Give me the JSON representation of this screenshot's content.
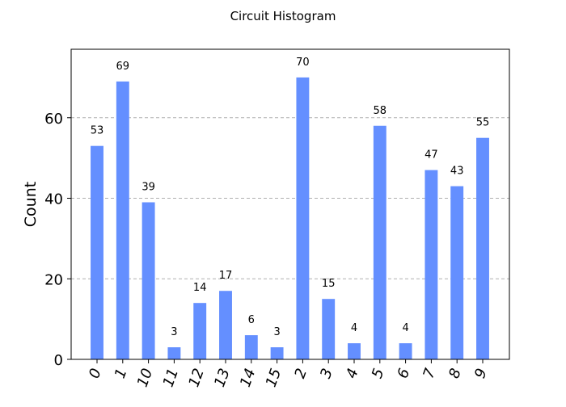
{
  "chart_data": {
    "type": "bar",
    "title": "Circuit Histogram",
    "xlabel": "",
    "ylabel": "Count",
    "categories": [
      "0",
      "1",
      "10",
      "11",
      "12",
      "13",
      "14",
      "15",
      "2",
      "3",
      "4",
      "5",
      "6",
      "7",
      "8",
      "9"
    ],
    "values": [
      53,
      69,
      39,
      3,
      14,
      17,
      6,
      3,
      70,
      15,
      4,
      58,
      4,
      47,
      43,
      55
    ],
    "ylim": [
      0,
      77
    ],
    "yticks": [
      0,
      20,
      40,
      60
    ],
    "grid": {
      "y": true,
      "x": false,
      "style": "dashed"
    },
    "bar_color": "#648fff",
    "tick_rotation_deg": -70,
    "data_labels": true
  }
}
